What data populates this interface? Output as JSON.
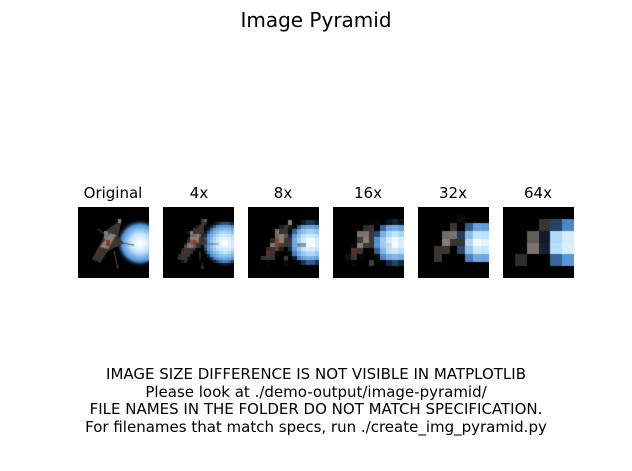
{
  "chart_data": {
    "type": "image-grid",
    "title": "Image Pyramid",
    "panels": [
      {
        "label": "Original",
        "grid": 71
      },
      {
        "label": "4x",
        "grid": 24
      },
      {
        "label": "8x",
        "grid": 16
      },
      {
        "label": "16x",
        "grid": 12
      },
      {
        "label": "32x",
        "grid": 9
      },
      {
        "label": "64x",
        "grid": 6
      }
    ],
    "notes": [
      "IMAGE SIZE DIFFERENCE IS NOT VISIBLE IN MATPLOTLIB",
      "Please look at ./demo-output/image-pyramid/",
      "FILE NAMES IN THE FOLDER DO NOT MATCH SPECIFICATION.",
      "For filenames that match specs, run ./create_img_pyramid.py"
    ],
    "colors": {
      "background": "#000000",
      "glow": "#bfe4ff",
      "glow_edge": "#4f8fd6",
      "ship": "#8a7f78"
    }
  }
}
